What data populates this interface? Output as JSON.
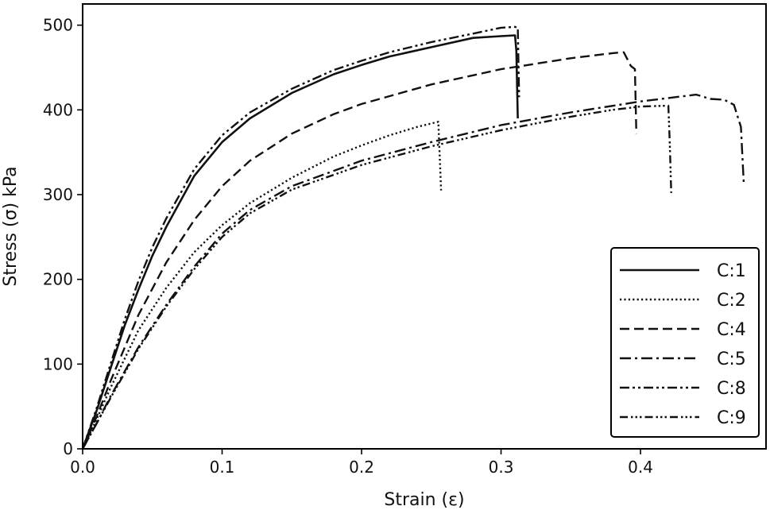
{
  "chart_data": {
    "type": "line",
    "title": "",
    "xlabel": "Strain (ε)",
    "ylabel": "Stress (σ) kPa",
    "xlim": [
      0.0,
      0.49
    ],
    "ylim": [
      0,
      525
    ],
    "xticks": [
      0.0,
      0.1,
      0.2,
      0.3,
      0.4
    ],
    "xtick_labels": [
      "0.0",
      "0.1",
      "0.2",
      "0.3",
      "0.4"
    ],
    "yticks": [
      0,
      100,
      200,
      300,
      400,
      500
    ],
    "ytick_labels": [
      "0",
      "100",
      "200",
      "300",
      "400",
      "500"
    ],
    "grid": false,
    "legend_position": "bottom-right",
    "series": [
      {
        "name": "C:1",
        "linestyle": "solid",
        "x": [
          0,
          0.01,
          0.02,
          0.03,
          0.04,
          0.05,
          0.06,
          0.08,
          0.1,
          0.12,
          0.15,
          0.18,
          0.2,
          0.22,
          0.25,
          0.28,
          0.3,
          0.31,
          0.311,
          0.312
        ],
        "y": [
          0,
          45,
          95,
          145,
          188,
          228,
          262,
          322,
          362,
          390,
          420,
          442,
          453,
          463,
          474,
          485,
          487,
          488,
          470,
          390
        ]
      },
      {
        "name": "C:2",
        "linestyle": "dotted",
        "x": [
          0,
          0.01,
          0.02,
          0.04,
          0.06,
          0.08,
          0.1,
          0.12,
          0.15,
          0.18,
          0.2,
          0.22,
          0.24,
          0.255,
          0.257
        ],
        "y": [
          0,
          35,
          72,
          140,
          190,
          232,
          264,
          290,
          320,
          345,
          358,
          370,
          380,
          386,
          305
        ]
      },
      {
        "name": "C:4",
        "linestyle": "dashed",
        "x": [
          0,
          0.01,
          0.02,
          0.04,
          0.06,
          0.08,
          0.1,
          0.12,
          0.15,
          0.18,
          0.2,
          0.25,
          0.3,
          0.35,
          0.38,
          0.388,
          0.393,
          0.396,
          0.397
        ],
        "y": [
          0,
          38,
          80,
          158,
          220,
          270,
          310,
          340,
          372,
          395,
          407,
          430,
          448,
          461,
          467,
          468,
          452,
          448,
          372
        ]
      },
      {
        "name": "C:5",
        "linestyle": "dashdot",
        "x": [
          0,
          0.01,
          0.02,
          0.04,
          0.06,
          0.08,
          0.1,
          0.12,
          0.15,
          0.2,
          0.25,
          0.3,
          0.35,
          0.4,
          0.42,
          0.44,
          0.45,
          0.46,
          0.467,
          0.472,
          0.474
        ],
        "y": [
          0,
          30,
          62,
          120,
          170,
          215,
          254,
          282,
          310,
          340,
          362,
          382,
          397,
          410,
          414,
          418,
          413,
          412,
          406,
          380,
          315
        ]
      },
      {
        "name": "C:8",
        "linestyle": "dashdotdot",
        "x": [
          0,
          0.01,
          0.02,
          0.03,
          0.04,
          0.05,
          0.06,
          0.08,
          0.1,
          0.12,
          0.15,
          0.18,
          0.2,
          0.22,
          0.25,
          0.28,
          0.3,
          0.31,
          0.312,
          0.313
        ],
        "y": [
          0,
          48,
          100,
          152,
          198,
          238,
          272,
          330,
          370,
          397,
          425,
          447,
          458,
          468,
          480,
          490,
          497,
          498,
          497,
          415
        ]
      },
      {
        "name": "C:9",
        "linestyle": "dashdotdotdot",
        "x": [
          0,
          0.01,
          0.02,
          0.04,
          0.06,
          0.08,
          0.1,
          0.12,
          0.15,
          0.2,
          0.25,
          0.3,
          0.35,
          0.38,
          0.4,
          0.42,
          0.421,
          0.422
        ],
        "y": [
          0,
          30,
          60,
          118,
          168,
          212,
          250,
          278,
          306,
          335,
          357,
          376,
          392,
          400,
          404,
          405,
          360,
          302
        ]
      }
    ]
  },
  "colors": {
    "line": "#111111",
    "axes": "#000000",
    "background": "#ffffff"
  }
}
